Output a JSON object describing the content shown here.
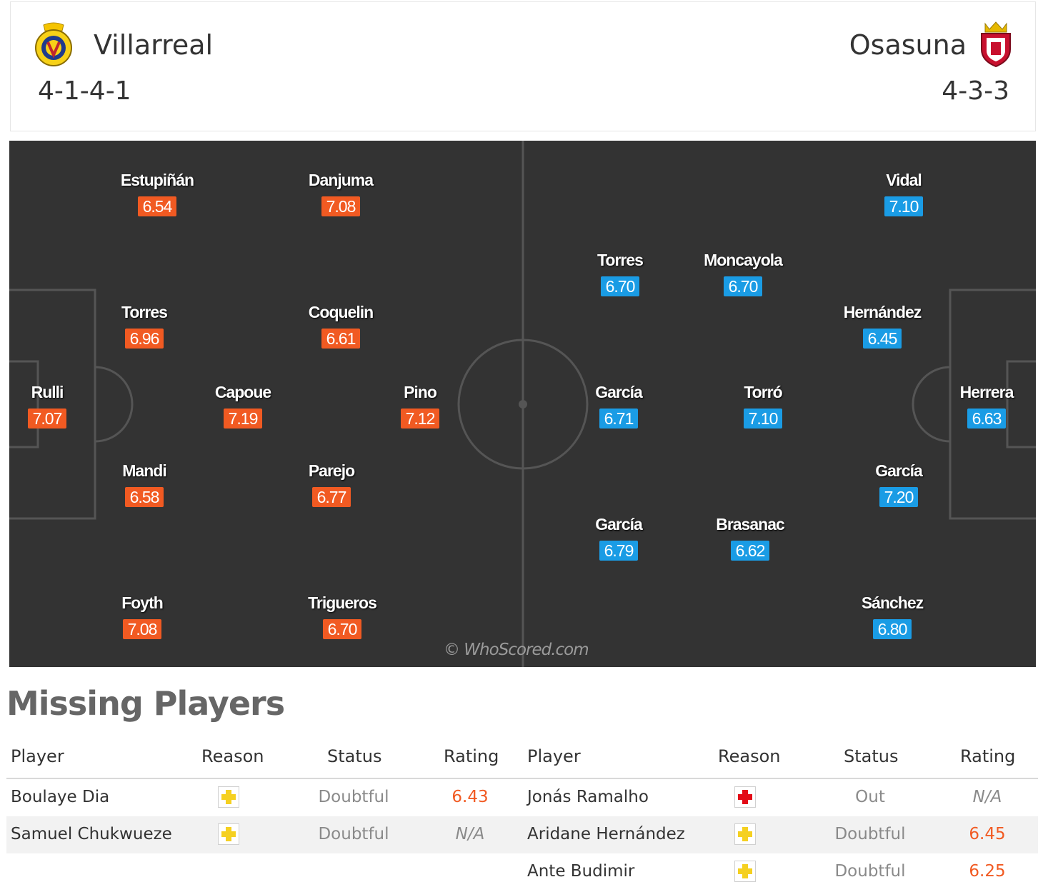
{
  "header": {
    "home": {
      "name": "Villarreal",
      "formation": "4-1-4-1"
    },
    "away": {
      "name": "Osasuna",
      "formation": "4-3-3"
    }
  },
  "colors": {
    "home_rating": "#f15a22",
    "away_rating": "#1a9ce5",
    "pitch": "#333333"
  },
  "pitch": {
    "watermark": "© WhoScored.com",
    "home_players": [
      {
        "name": "Estupiñán",
        "rating": "6.54"
      },
      {
        "name": "Danjuma",
        "rating": "7.08"
      },
      {
        "name": "Torres",
        "rating": "6.96"
      },
      {
        "name": "Coquelin",
        "rating": "6.61"
      },
      {
        "name": "Rulli",
        "rating": "7.07"
      },
      {
        "name": "Capoue",
        "rating": "7.19"
      },
      {
        "name": "Pino",
        "rating": "7.12"
      },
      {
        "name": "Mandi",
        "rating": "6.58"
      },
      {
        "name": "Parejo",
        "rating": "6.77"
      },
      {
        "name": "Foyth",
        "rating": "7.08"
      },
      {
        "name": "Trigueros",
        "rating": "6.70"
      }
    ],
    "away_players": [
      {
        "name": "Vidal",
        "rating": "7.10"
      },
      {
        "name": "Torres",
        "rating": "6.70"
      },
      {
        "name": "Moncayola",
        "rating": "6.70"
      },
      {
        "name": "Hernández",
        "rating": "6.45"
      },
      {
        "name": "García",
        "rating": "6.71"
      },
      {
        "name": "Torró",
        "rating": "7.10"
      },
      {
        "name": "Herrera",
        "rating": "6.63"
      },
      {
        "name": "García",
        "rating": "7.20"
      },
      {
        "name": "García",
        "rating": "6.79"
      },
      {
        "name": "Brasanac",
        "rating": "6.62"
      },
      {
        "name": "Sánchez",
        "rating": "6.80"
      }
    ]
  },
  "missing": {
    "title": "Missing Players",
    "columns": [
      "Player",
      "Reason",
      "Status",
      "Rating"
    ],
    "home": [
      {
        "player": "Boulaye Dia",
        "reason_icon": "yellow-cross-icon",
        "status": "Doubtful",
        "rating": "6.43"
      },
      {
        "player": "Samuel Chukwueze",
        "reason_icon": "yellow-cross-icon",
        "status": "Doubtful",
        "rating": "N/A"
      }
    ],
    "away": [
      {
        "player": "Jonás Ramalho",
        "reason_icon": "red-cross-icon",
        "status": "Out",
        "rating": "N/A"
      },
      {
        "player": "Aridane Hernández",
        "reason_icon": "yellow-cross-icon",
        "status": "Doubtful",
        "rating": "6.45"
      },
      {
        "player": "Ante Budimir",
        "reason_icon": "yellow-cross-icon",
        "status": "Doubtful",
        "rating": "6.25"
      }
    ]
  }
}
